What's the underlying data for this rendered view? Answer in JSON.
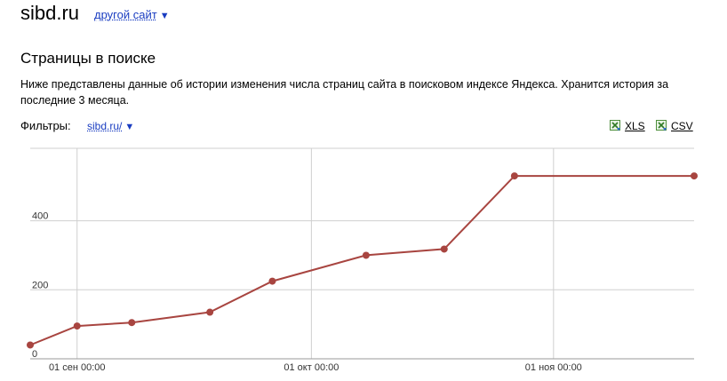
{
  "header": {
    "site": "sibd.ru",
    "other_site_link": "другой сайт",
    "dropdown_icon": "triangle-down"
  },
  "section": {
    "title": "Страницы в поиске",
    "description": "Ниже представлены данные об истории изменения числа страниц сайта в поисковом индексе Яндекса. Хранится история за последние 3 месяца."
  },
  "filters": {
    "label": "Фильтры:",
    "value": "sibd.ru/"
  },
  "export": {
    "xls": "XLS",
    "csv": "CSV",
    "icon": "excel-sheet-icon"
  },
  "colors": {
    "link": "#1a3dc1",
    "line": "#a84540",
    "grid": "#cfcfcf"
  },
  "chart_data": {
    "type": "line",
    "x_ticks": [
      "01 сен 00:00",
      "01 окт 00:00",
      "01 ноя 00:00"
    ],
    "y_ticks": [
      0,
      200,
      400
    ],
    "xlim": [
      "2013-08-26",
      "2013-11-19"
    ],
    "ylim": [
      0,
      610
    ],
    "grid": true,
    "series": [
      {
        "points": [
          {
            "x": "2013-08-26",
            "y": 40
          },
          {
            "x": "2013-09-01",
            "y": 95
          },
          {
            "x": "2013-09-08",
            "y": 105
          },
          {
            "x": "2013-09-18",
            "y": 135
          },
          {
            "x": "2013-09-26",
            "y": 225
          },
          {
            "x": "2013-10-08",
            "y": 300
          },
          {
            "x": "2013-10-18",
            "y": 318
          },
          {
            "x": "2013-10-27",
            "y": 530
          },
          {
            "x": "2013-11-19",
            "y": 530
          }
        ]
      }
    ]
  }
}
